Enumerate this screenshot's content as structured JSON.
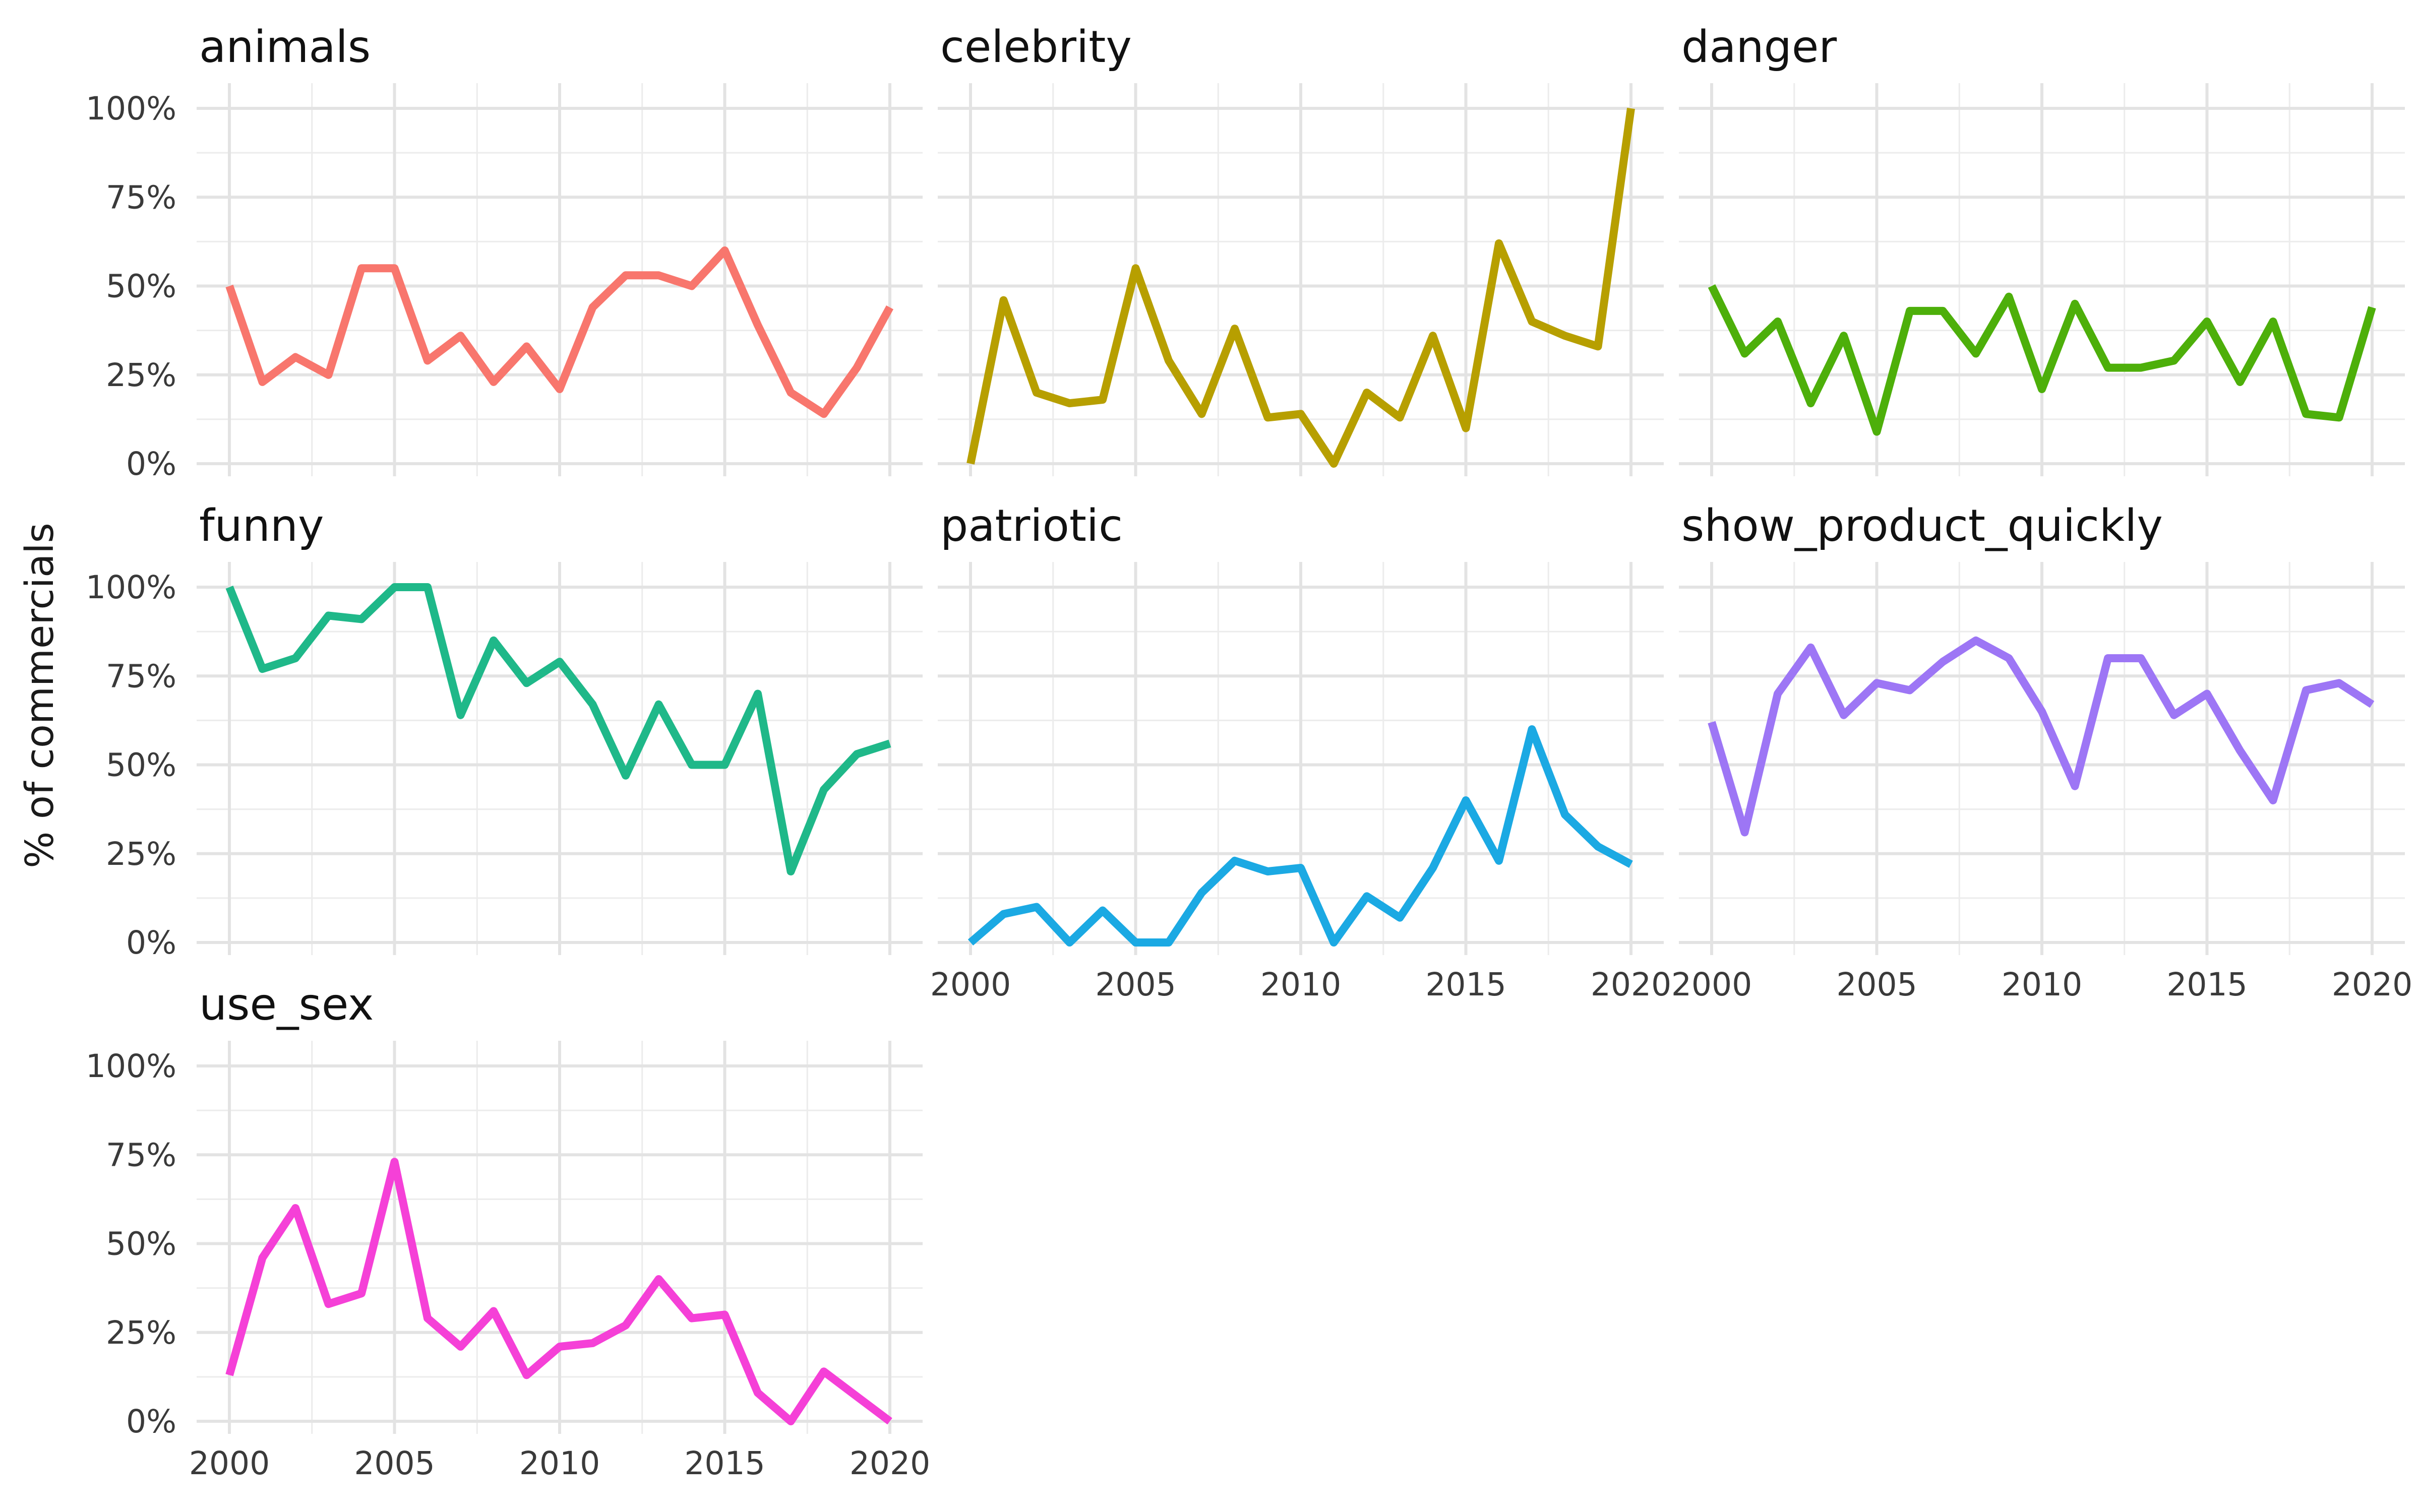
{
  "chart_data": {
    "type": "line",
    "ylabel": "% of commercials",
    "xlim": [
      2000,
      2020
    ],
    "ylim": [
      0,
      100
    ],
    "x_ticks": [
      2000,
      2005,
      2010,
      2015,
      2020
    ],
    "y_ticks": [
      0,
      25,
      50,
      75,
      100
    ],
    "y_tick_labels": [
      "0%",
      "25%",
      "50%",
      "75%",
      "100%"
    ],
    "grid": true,
    "legend": "none",
    "x": [
      2000,
      2001,
      2002,
      2003,
      2004,
      2005,
      2006,
      2007,
      2008,
      2009,
      2010,
      2011,
      2012,
      2013,
      2014,
      2015,
      2016,
      2017,
      2018,
      2019,
      2020
    ],
    "series": [
      {
        "name": "animals",
        "color": "#F8766D",
        "values": [
          50,
          23,
          30,
          25,
          55,
          55,
          29,
          36,
          23,
          33,
          21,
          44,
          53,
          53,
          50,
          60,
          39,
          20,
          14,
          27,
          44
        ]
      },
      {
        "name": "celebrity",
        "color": "#B79F00",
        "values": [
          0,
          46,
          20,
          17,
          18,
          55,
          29,
          14,
          38,
          13,
          14,
          0,
          20,
          13,
          36,
          10,
          62,
          40,
          36,
          33,
          100
        ]
      },
      {
        "name": "danger",
        "color": "#4DAF0A",
        "values": [
          50,
          31,
          40,
          17,
          36,
          9,
          43,
          43,
          31,
          47,
          21,
          45,
          27,
          27,
          29,
          40,
          23,
          40,
          14,
          13,
          44
        ]
      },
      {
        "name": "funny",
        "color": "#1FB889",
        "values": [
          100,
          77,
          80,
          92,
          91,
          100,
          100,
          64,
          85,
          73,
          79,
          67,
          47,
          67,
          50,
          50,
          70,
          20,
          43,
          53,
          56
        ]
      },
      {
        "name": "patriotic",
        "color": "#1BA9E3",
        "values": [
          0,
          8,
          10,
          0,
          9,
          0,
          0,
          14,
          23,
          20,
          21,
          0,
          13,
          7,
          21,
          40,
          23,
          60,
          36,
          27,
          22
        ]
      },
      {
        "name": "show_product_quickly",
        "color": "#9D76F5",
        "values": [
          62,
          31,
          70,
          83,
          64,
          73,
          71,
          79,
          85,
          80,
          65,
          44,
          80,
          80,
          64,
          70,
          54,
          40,
          71,
          73,
          67
        ]
      },
      {
        "name": "use_sex",
        "color": "#F540D7",
        "values": [
          13,
          46,
          60,
          33,
          36,
          73,
          29,
          21,
          31,
          13,
          21,
          22,
          27,
          40,
          29,
          30,
          8,
          0,
          14,
          7,
          0
        ]
      }
    ]
  }
}
